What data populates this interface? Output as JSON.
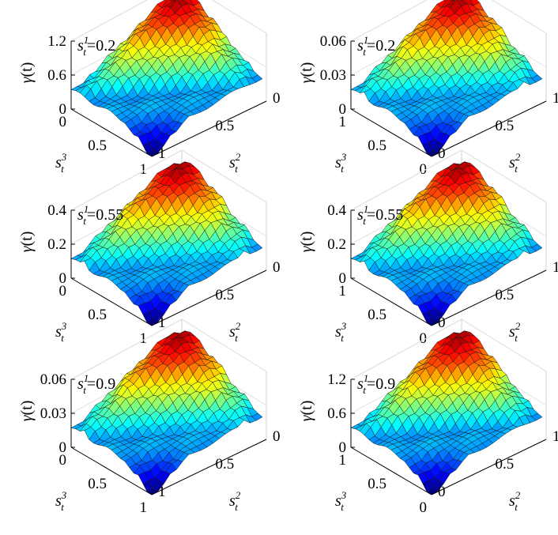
{
  "figure": {
    "colormap": "jet",
    "edge_color": "#1a1a1a",
    "background": "#ffffff"
  },
  "chart_data": [
    {
      "type": "surface",
      "panel": "left-top",
      "annotation": {
        "var": "s",
        "sup": "1",
        "sub": "t",
        "value": "=0.2"
      },
      "zlabel": "γ(t)",
      "zlim": [
        0,
        1.2
      ],
      "zticks": [
        "0",
        "0.6",
        "1.2"
      ],
      "x_ticks": [
        "0",
        "0.5",
        "1"
      ],
      "y_ticks": [
        "1",
        "0.5",
        "0"
      ],
      "xlabel": {
        "var": "s",
        "sup": "3",
        "sub": "t"
      },
      "ylabel": {
        "var": "s",
        "sup": "2",
        "sub": "t"
      },
      "peak_value": 1.2,
      "corner_value": 0.35,
      "base_value": 0.0
    },
    {
      "type": "surface",
      "panel": "right-top",
      "annotation": {
        "var": "s",
        "sup": "1",
        "sub": "t",
        "value": "=0.2"
      },
      "zlabel": "γ(t)",
      "zlim": [
        0,
        0.06
      ],
      "zticks": [
        "0",
        "0.03",
        "0.06"
      ],
      "x_ticks": [
        "1",
        "0.5",
        "0"
      ],
      "y_ticks": [
        "0",
        "0.5",
        "1"
      ],
      "xlabel": {
        "var": "s",
        "sup": "3",
        "sub": "t"
      },
      "ylabel": {
        "var": "s",
        "sup": "2",
        "sub": "t"
      },
      "peak_value": 0.06,
      "corner_value": 0.018,
      "base_value": 0.0
    },
    {
      "type": "surface",
      "panel": "left-middle",
      "annotation": {
        "var": "s",
        "sup": "1",
        "sub": "t",
        "value": "=0.55"
      },
      "zlabel": "γ(t)",
      "zlim": [
        0,
        0.4
      ],
      "zticks": [
        "0",
        "0.2",
        "0.4"
      ],
      "x_ticks": [
        "0",
        "0.5",
        "1"
      ],
      "y_ticks": [
        "1",
        "0.5",
        "0"
      ],
      "xlabel": {
        "var": "s",
        "sup": "3",
        "sub": "t"
      },
      "ylabel": {
        "var": "s",
        "sup": "2",
        "sub": "t"
      },
      "peak_value": 0.4,
      "corner_value": 0.12,
      "base_value": 0.0
    },
    {
      "type": "surface",
      "panel": "right-middle",
      "annotation": {
        "var": "s",
        "sup": "1",
        "sub": "t",
        "value": "=0.55"
      },
      "zlabel": "γ(t)",
      "zlim": [
        0,
        0.4
      ],
      "zticks": [
        "0",
        "0.2",
        "0.4"
      ],
      "x_ticks": [
        "1",
        "0.5",
        "0"
      ],
      "y_ticks": [
        "0",
        "0.5",
        "1"
      ],
      "xlabel": {
        "var": "s",
        "sup": "3",
        "sub": "t"
      },
      "ylabel": {
        "var": "s",
        "sup": "2",
        "sub": "t"
      },
      "peak_value": 0.4,
      "corner_value": 0.12,
      "base_value": 0.0
    },
    {
      "type": "surface",
      "panel": "left-bottom",
      "annotation": {
        "var": "s",
        "sup": "1",
        "sub": "t",
        "value": "=0.9"
      },
      "zlabel": "γ(t)",
      "zlim": [
        0,
        0.06
      ],
      "zticks": [
        "0",
        "0.03",
        "0.06"
      ],
      "x_ticks": [
        "0",
        "0.5",
        "1"
      ],
      "y_ticks": [
        "1",
        "0.5",
        "0"
      ],
      "xlabel": {
        "var": "s",
        "sup": "3",
        "sub": "t"
      },
      "ylabel": {
        "var": "s",
        "sup": "2",
        "sub": "t"
      },
      "peak_value": 0.06,
      "corner_value": 0.018,
      "base_value": 0.0
    },
    {
      "type": "surface",
      "panel": "right-bottom",
      "annotation": {
        "var": "s",
        "sup": "1",
        "sub": "t",
        "value": "=0.9"
      },
      "zlabel": "γ(t)",
      "zlim": [
        0,
        1.2
      ],
      "zticks": [
        "0",
        "0.6",
        "1.2"
      ],
      "x_ticks": [
        "1",
        "0.5",
        "0"
      ],
      "y_ticks": [
        "0",
        "0.5",
        "1"
      ],
      "xlabel": {
        "var": "s",
        "sup": "3",
        "sub": "t"
      },
      "ylabel": {
        "var": "s",
        "sup": "2",
        "sub": "t"
      },
      "peak_value": 1.2,
      "corner_value": 0.35,
      "base_value": 0.0
    }
  ]
}
